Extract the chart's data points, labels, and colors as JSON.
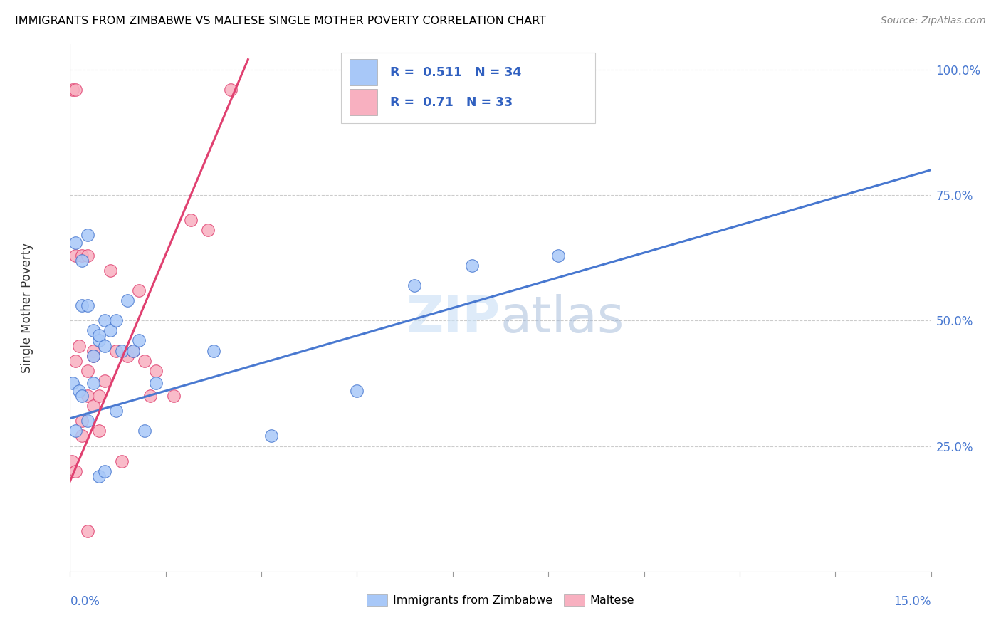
{
  "title": "IMMIGRANTS FROM ZIMBABWE VS MALTESE SINGLE MOTHER POVERTY CORRELATION CHART",
  "source": "Source: ZipAtlas.com",
  "ylabel": "Single Mother Poverty",
  "xmin": 0.0,
  "xmax": 0.15,
  "ymin": 0.0,
  "ymax": 1.05,
  "blue_R": 0.511,
  "blue_N": 34,
  "pink_R": 0.71,
  "pink_N": 33,
  "blue_color": "#a8c8f8",
  "pink_color": "#f8b0c0",
  "blue_line_color": "#4878d0",
  "pink_line_color": "#e04070",
  "legend_label_blue": "Immigrants from Zimbabwe",
  "legend_label_pink": "Maltese",
  "watermark": "ZIPatlas",
  "blue_line_x0": 0.0,
  "blue_line_y0": 0.305,
  "blue_line_x1": 0.15,
  "blue_line_y1": 0.8,
  "pink_line_x0": 0.0,
  "pink_line_y0": 0.18,
  "pink_line_x1": 0.031,
  "pink_line_y1": 1.02,
  "blue_scatter_x": [
    0.0005,
    0.001,
    0.0015,
    0.002,
    0.002,
    0.003,
    0.003,
    0.004,
    0.004,
    0.005,
    0.005,
    0.006,
    0.006,
    0.007,
    0.008,
    0.009,
    0.01,
    0.011,
    0.012,
    0.013,
    0.025,
    0.035,
    0.05,
    0.06,
    0.07,
    0.085,
    0.002,
    0.003,
    0.005,
    0.006,
    0.008,
    0.015,
    0.001,
    0.004
  ],
  "blue_scatter_y": [
    0.375,
    0.28,
    0.36,
    0.35,
    0.62,
    0.3,
    0.67,
    0.48,
    0.43,
    0.46,
    0.47,
    0.5,
    0.45,
    0.48,
    0.5,
    0.44,
    0.54,
    0.44,
    0.46,
    0.28,
    0.44,
    0.27,
    0.36,
    0.57,
    0.61,
    0.63,
    0.53,
    0.53,
    0.19,
    0.2,
    0.32,
    0.375,
    0.655,
    0.375
  ],
  "pink_scatter_x": [
    0.0003,
    0.001,
    0.001,
    0.002,
    0.002,
    0.003,
    0.003,
    0.004,
    0.004,
    0.005,
    0.005,
    0.006,
    0.007,
    0.008,
    0.009,
    0.01,
    0.011,
    0.012,
    0.013,
    0.014,
    0.015,
    0.018,
    0.021,
    0.024,
    0.028,
    0.0005,
    0.001,
    0.003,
    0.001,
    0.002,
    0.003,
    0.0015,
    0.004
  ],
  "pink_scatter_y": [
    0.22,
    0.2,
    0.42,
    0.3,
    0.27,
    0.35,
    0.4,
    0.44,
    0.33,
    0.35,
    0.28,
    0.38,
    0.6,
    0.44,
    0.22,
    0.43,
    0.44,
    0.56,
    0.42,
    0.35,
    0.4,
    0.35,
    0.7,
    0.68,
    0.96,
    0.96,
    0.96,
    0.08,
    0.63,
    0.63,
    0.63,
    0.45,
    0.43
  ]
}
